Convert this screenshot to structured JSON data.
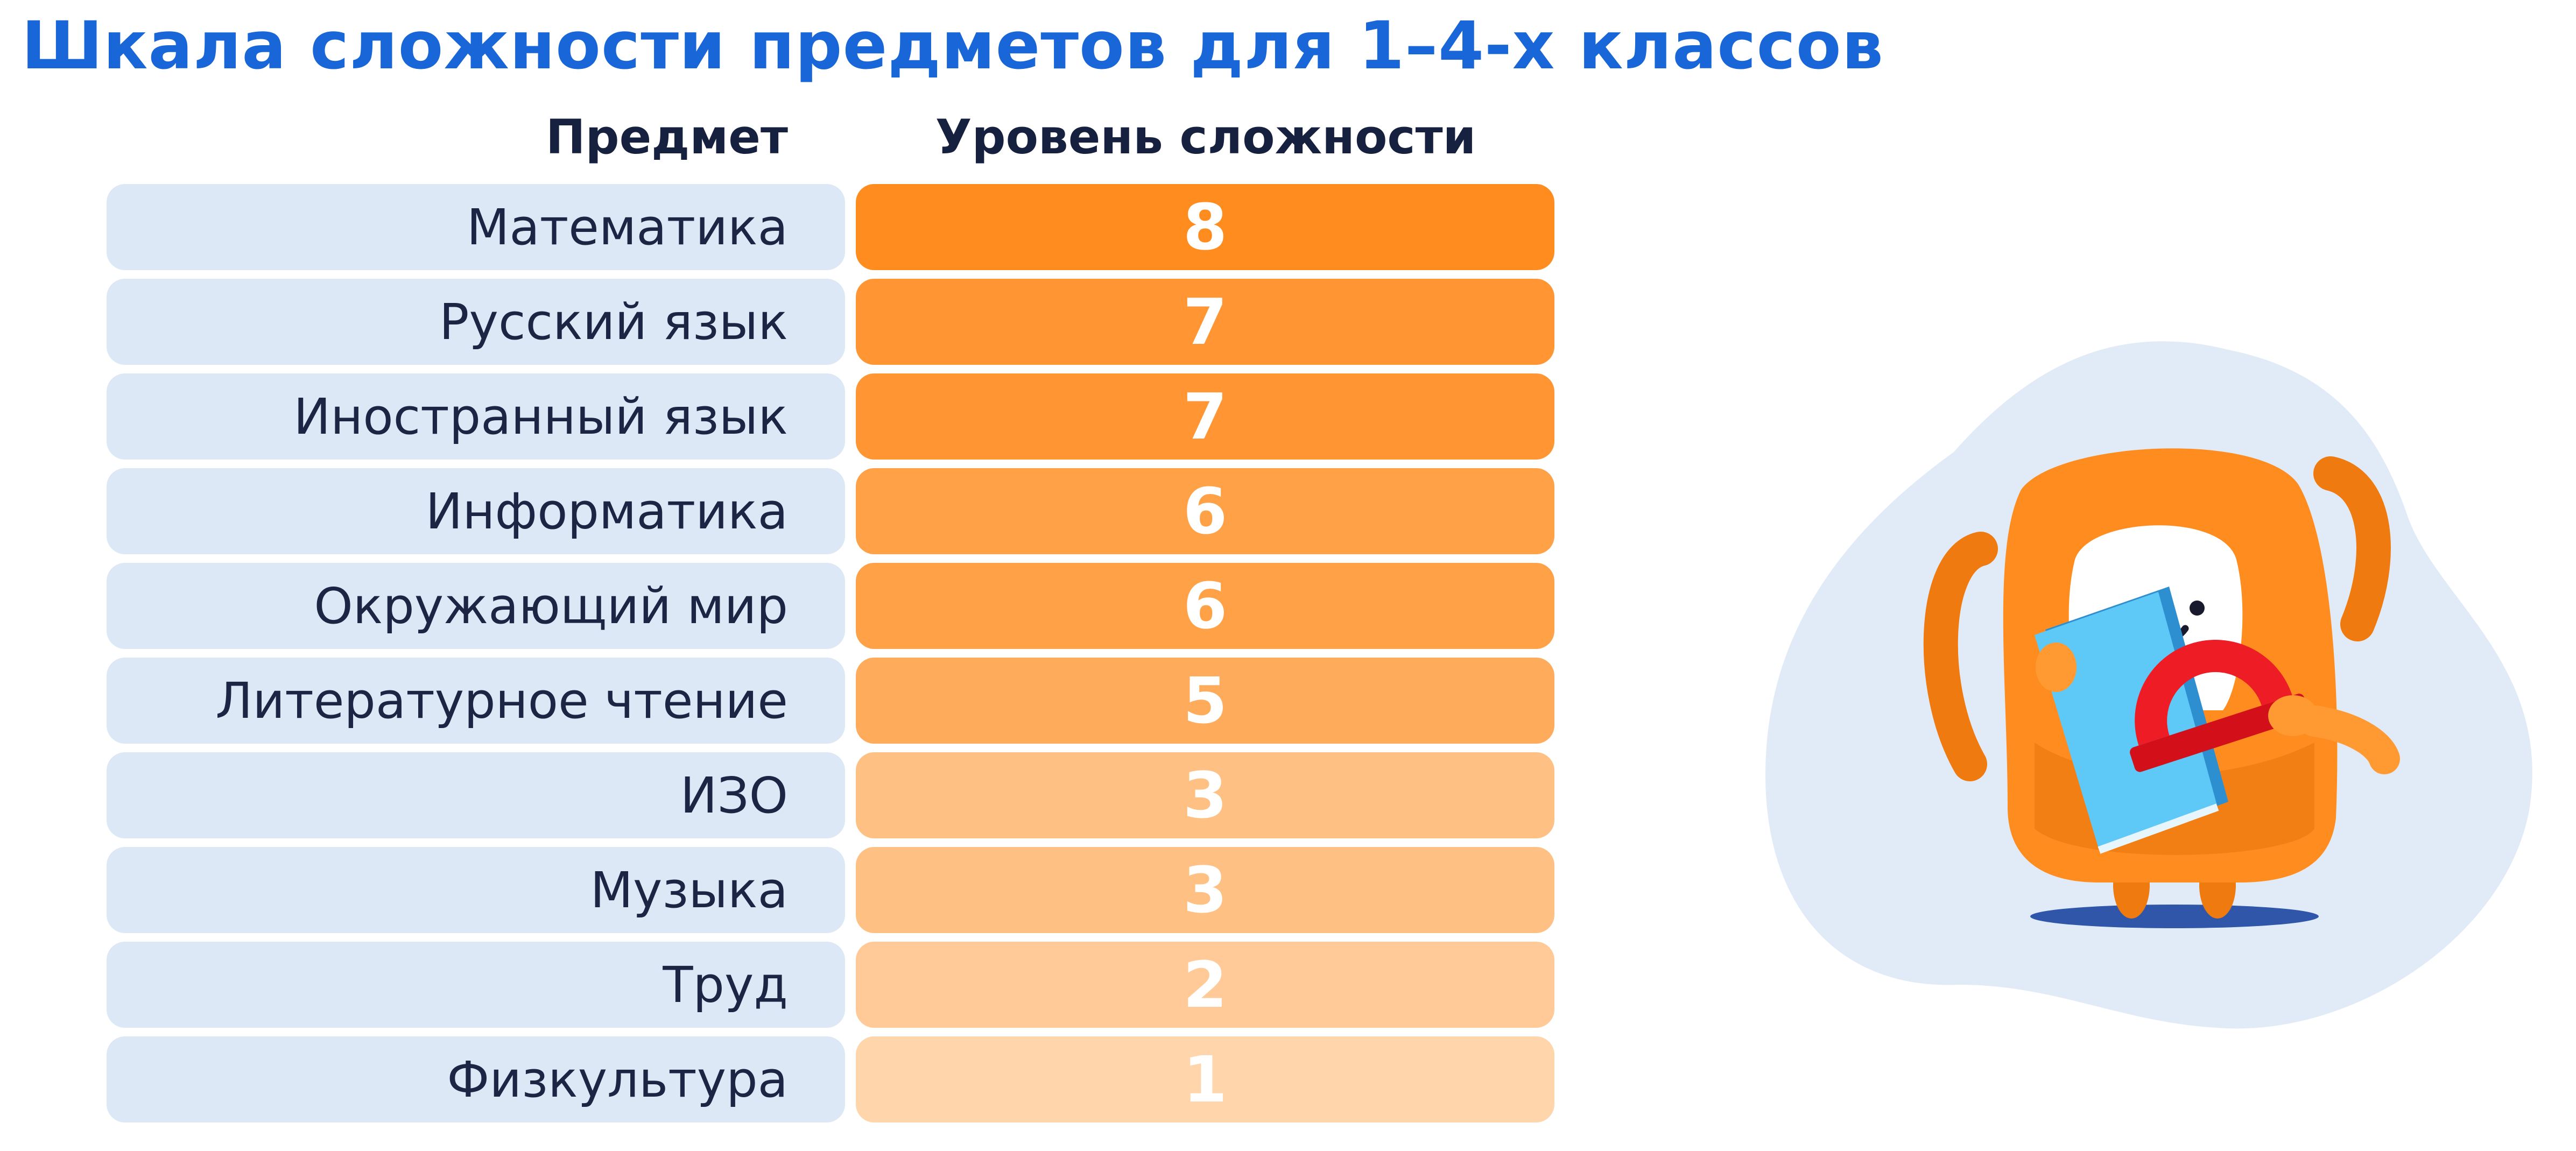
{
  "chart_data": {
    "type": "table",
    "title": "Шкала сложности предметов для 1–4-х классов",
    "column_headers": [
      "Предмет",
      "Уровень сложности"
    ],
    "rows": [
      {
        "subject": "Математика",
        "level": 8
      },
      {
        "subject": "Русский язык",
        "level": 7
      },
      {
        "subject": "Иностранный язык",
        "level": 7
      },
      {
        "subject": "Информатика",
        "level": 6
      },
      {
        "subject": "Окружающий мир",
        "level": 6
      },
      {
        "subject": "Литературное чтение",
        "level": 5
      },
      {
        "subject": "ИЗО",
        "level": 3
      },
      {
        "subject": "Музыка",
        "level": 3
      },
      {
        "subject": "Труд",
        "level": 2
      },
      {
        "subject": "Физкультура",
        "level": 1
      }
    ],
    "level_color": "#ff8c1f",
    "subject_cell_color": "#dde8f6"
  },
  "illustration": {
    "mascot_icon": "backpack-mascot-icon",
    "items": [
      "book-icon",
      "protractor-icon"
    ],
    "backdrop_color": "#e1ebf7",
    "accent_color": "#ff8c1f"
  }
}
